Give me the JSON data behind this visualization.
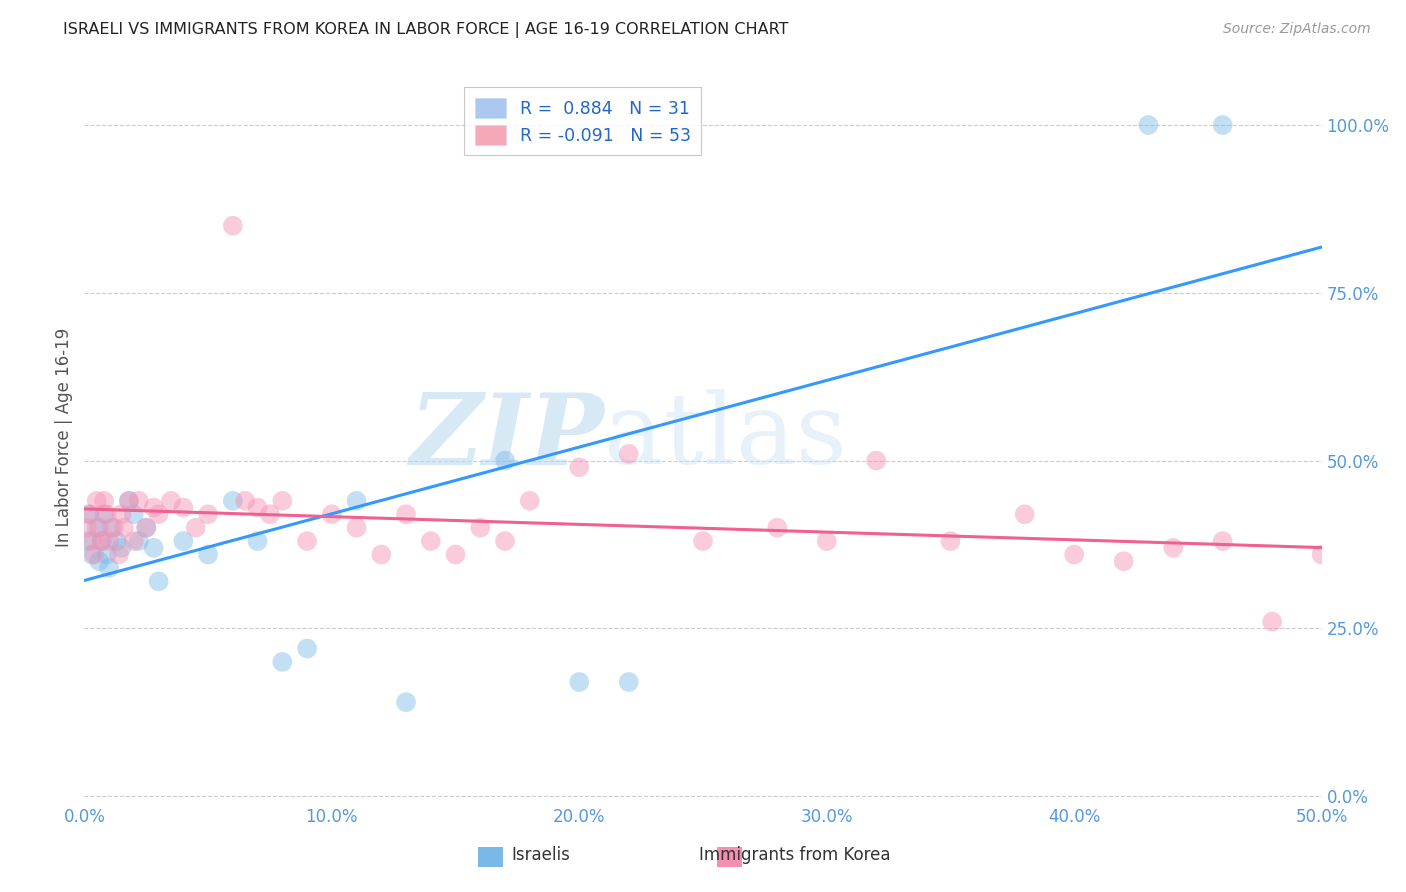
{
  "title": "ISRAELI VS IMMIGRANTS FROM KOREA IN LABOR FORCE | AGE 16-19 CORRELATION CHART",
  "source": "Source: ZipAtlas.com",
  "ylabel_label": "In Labor Force | Age 16-19",
  "xlim": [
    0.0,
    0.5
  ],
  "ylim": [
    -0.01,
    1.08
  ],
  "watermark_zip": "ZIP",
  "watermark_atlas": "atlas",
  "legend_entries": [
    {
      "label": "R =  0.884   N = 31",
      "color": "#aac8f0"
    },
    {
      "label": "R = -0.091   N = 53",
      "color": "#f4a8b8"
    }
  ],
  "israelis_x": [
    0.001,
    0.002,
    0.003,
    0.005,
    0.006,
    0.007,
    0.008,
    0.009,
    0.01,
    0.011,
    0.013,
    0.015,
    0.018,
    0.02,
    0.022,
    0.025,
    0.028,
    0.03,
    0.04,
    0.05,
    0.06,
    0.07,
    0.08,
    0.09,
    0.11,
    0.13,
    0.17,
    0.2,
    0.22,
    0.43,
    0.46
  ],
  "israelis_y": [
    0.38,
    0.42,
    0.36,
    0.4,
    0.35,
    0.38,
    0.42,
    0.36,
    0.34,
    0.4,
    0.38,
    0.37,
    0.44,
    0.42,
    0.38,
    0.4,
    0.37,
    0.32,
    0.38,
    0.36,
    0.44,
    0.38,
    0.2,
    0.22,
    0.44,
    0.14,
    0.5,
    0.17,
    0.17,
    1.0,
    1.0
  ],
  "korea_x": [
    0.001,
    0.002,
    0.003,
    0.004,
    0.005,
    0.006,
    0.007,
    0.008,
    0.009,
    0.01,
    0.012,
    0.014,
    0.015,
    0.016,
    0.018,
    0.02,
    0.022,
    0.025,
    0.028,
    0.03,
    0.035,
    0.04,
    0.045,
    0.05,
    0.06,
    0.065,
    0.07,
    0.075,
    0.08,
    0.09,
    0.1,
    0.11,
    0.12,
    0.13,
    0.14,
    0.15,
    0.16,
    0.17,
    0.18,
    0.2,
    0.22,
    0.25,
    0.28,
    0.3,
    0.32,
    0.35,
    0.38,
    0.4,
    0.42,
    0.44,
    0.46,
    0.48,
    0.5
  ],
  "korea_y": [
    0.4,
    0.42,
    0.38,
    0.36,
    0.44,
    0.4,
    0.38,
    0.44,
    0.42,
    0.38,
    0.4,
    0.36,
    0.42,
    0.4,
    0.44,
    0.38,
    0.44,
    0.4,
    0.43,
    0.42,
    0.44,
    0.43,
    0.4,
    0.42,
    0.85,
    0.44,
    0.43,
    0.42,
    0.44,
    0.38,
    0.42,
    0.4,
    0.36,
    0.42,
    0.38,
    0.36,
    0.4,
    0.38,
    0.44,
    0.49,
    0.51,
    0.38,
    0.4,
    0.38,
    0.5,
    0.38,
    0.42,
    0.36,
    0.35,
    0.37,
    0.38,
    0.26,
    0.36
  ],
  "israeli_color": "#7ab8e8",
  "korean_color": "#f48fb1",
  "israeli_line_color": "#3399ff",
  "korean_line_color": "#f06090",
  "dot_size": 200,
  "dot_alpha": 0.45,
  "bg_color": "#ffffff",
  "grid_color": "#cccccc",
  "ytick_vals": [
    0.0,
    0.25,
    0.5,
    0.75,
    1.0
  ],
  "xtick_vals": [
    0.0,
    0.1,
    0.2,
    0.3,
    0.4,
    0.5
  ],
  "tick_color": "#5599dd",
  "ylabel_color": "#555555",
  "title_color": "#222222",
  "source_color": "#999999",
  "legend_label_color": "#2266cc"
}
